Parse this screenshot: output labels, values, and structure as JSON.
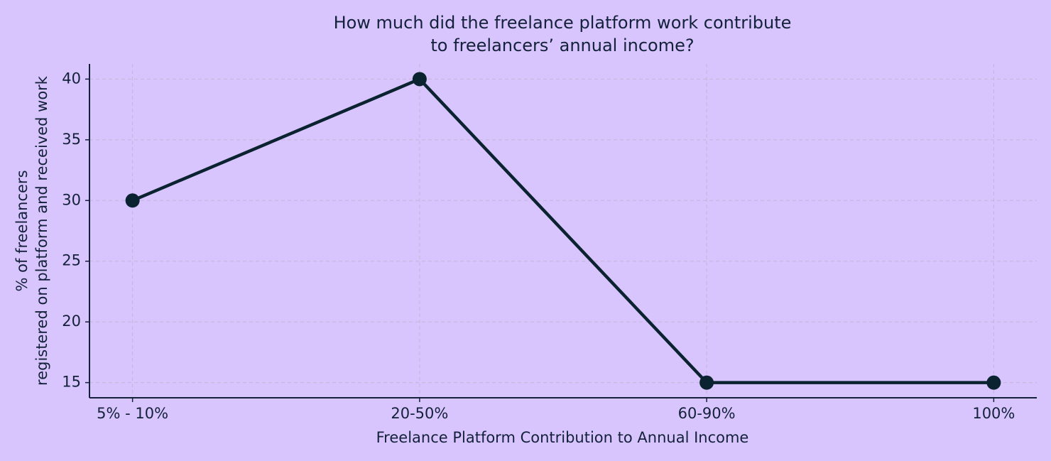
{
  "chart_data": {
    "type": "line",
    "title": [
      "How much did the freelance platform work contribute",
      "to freelancers’ annual income?"
    ],
    "x_label": "Freelance Platform Contribution to Annual Income",
    "y_label": [
      "% of freelancers",
      "registered on platform and received work"
    ],
    "categories": [
      "5% - 10%",
      "20-50%",
      "60-90%",
      "100%"
    ],
    "values": [
      30,
      40,
      15,
      15
    ],
    "color": "#0b2230",
    "ylim": [
      13.75,
      41.25
    ],
    "yticks": [
      15,
      20,
      25,
      30,
      35,
      40
    ],
    "grid": true
  }
}
